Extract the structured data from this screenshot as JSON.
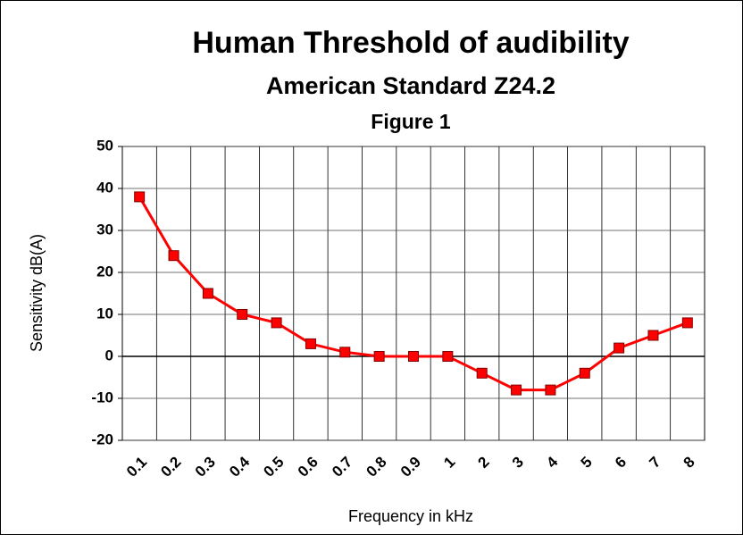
{
  "chart_data": {
    "type": "line",
    "title": "Human Threshold of audibility",
    "subtitle": "American Standard Z24.2",
    "figure_label": "Figure 1",
    "x_label": "Frequency in kHz",
    "y_label": "Sensitivity dB(A)",
    "categories": [
      "0.1",
      "0.2",
      "0.3",
      "0.4",
      "0.5",
      "0.6",
      "0.7",
      "0.8",
      "0.9",
      "1",
      "2",
      "3",
      "4",
      "5",
      "6",
      "7",
      "8"
    ],
    "series": [
      {
        "name": "Sensitivity",
        "color": "#ff0000",
        "values": [
          38,
          24,
          15,
          10,
          8,
          3,
          1,
          0,
          0,
          0,
          -4,
          -8,
          -8,
          -4,
          2,
          5,
          8
        ]
      }
    ],
    "ylim": [
      -20,
      50
    ],
    "yticks": [
      -20,
      -10,
      0,
      10,
      20,
      30,
      40,
      50
    ],
    "grid": true
  }
}
